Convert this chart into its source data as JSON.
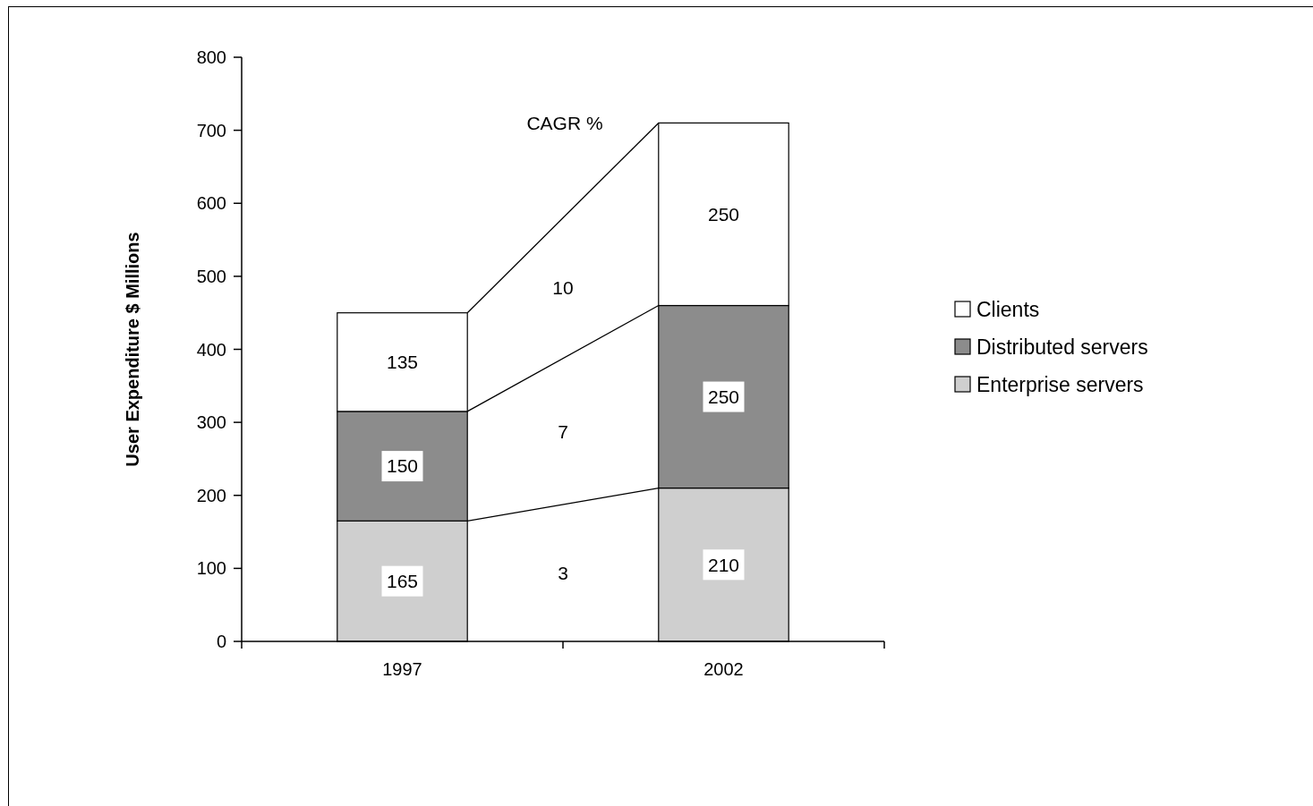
{
  "chart_data": {
    "type": "bar",
    "stacked": true,
    "ylabel": "User Expenditure $ Millions",
    "categories": [
      "1997",
      "2002"
    ],
    "series": [
      {
        "name": "Enterprise servers",
        "color": "#cfcfcf",
        "values": [
          165,
          210
        ]
      },
      {
        "name": "Distributed servers",
        "color": "#8c8c8c",
        "values": [
          150,
          250
        ]
      },
      {
        "name": "Clients",
        "color": "#ffffff",
        "values": [
          135,
          250
        ]
      }
    ],
    "ylim": [
      0,
      800
    ],
    "yticks": [
      0,
      100,
      200,
      300,
      400,
      500,
      600,
      700,
      800
    ],
    "data_labels": true,
    "legend": "right",
    "annotations": [
      "CAGR %",
      "10",
      "7",
      "3"
    ]
  }
}
